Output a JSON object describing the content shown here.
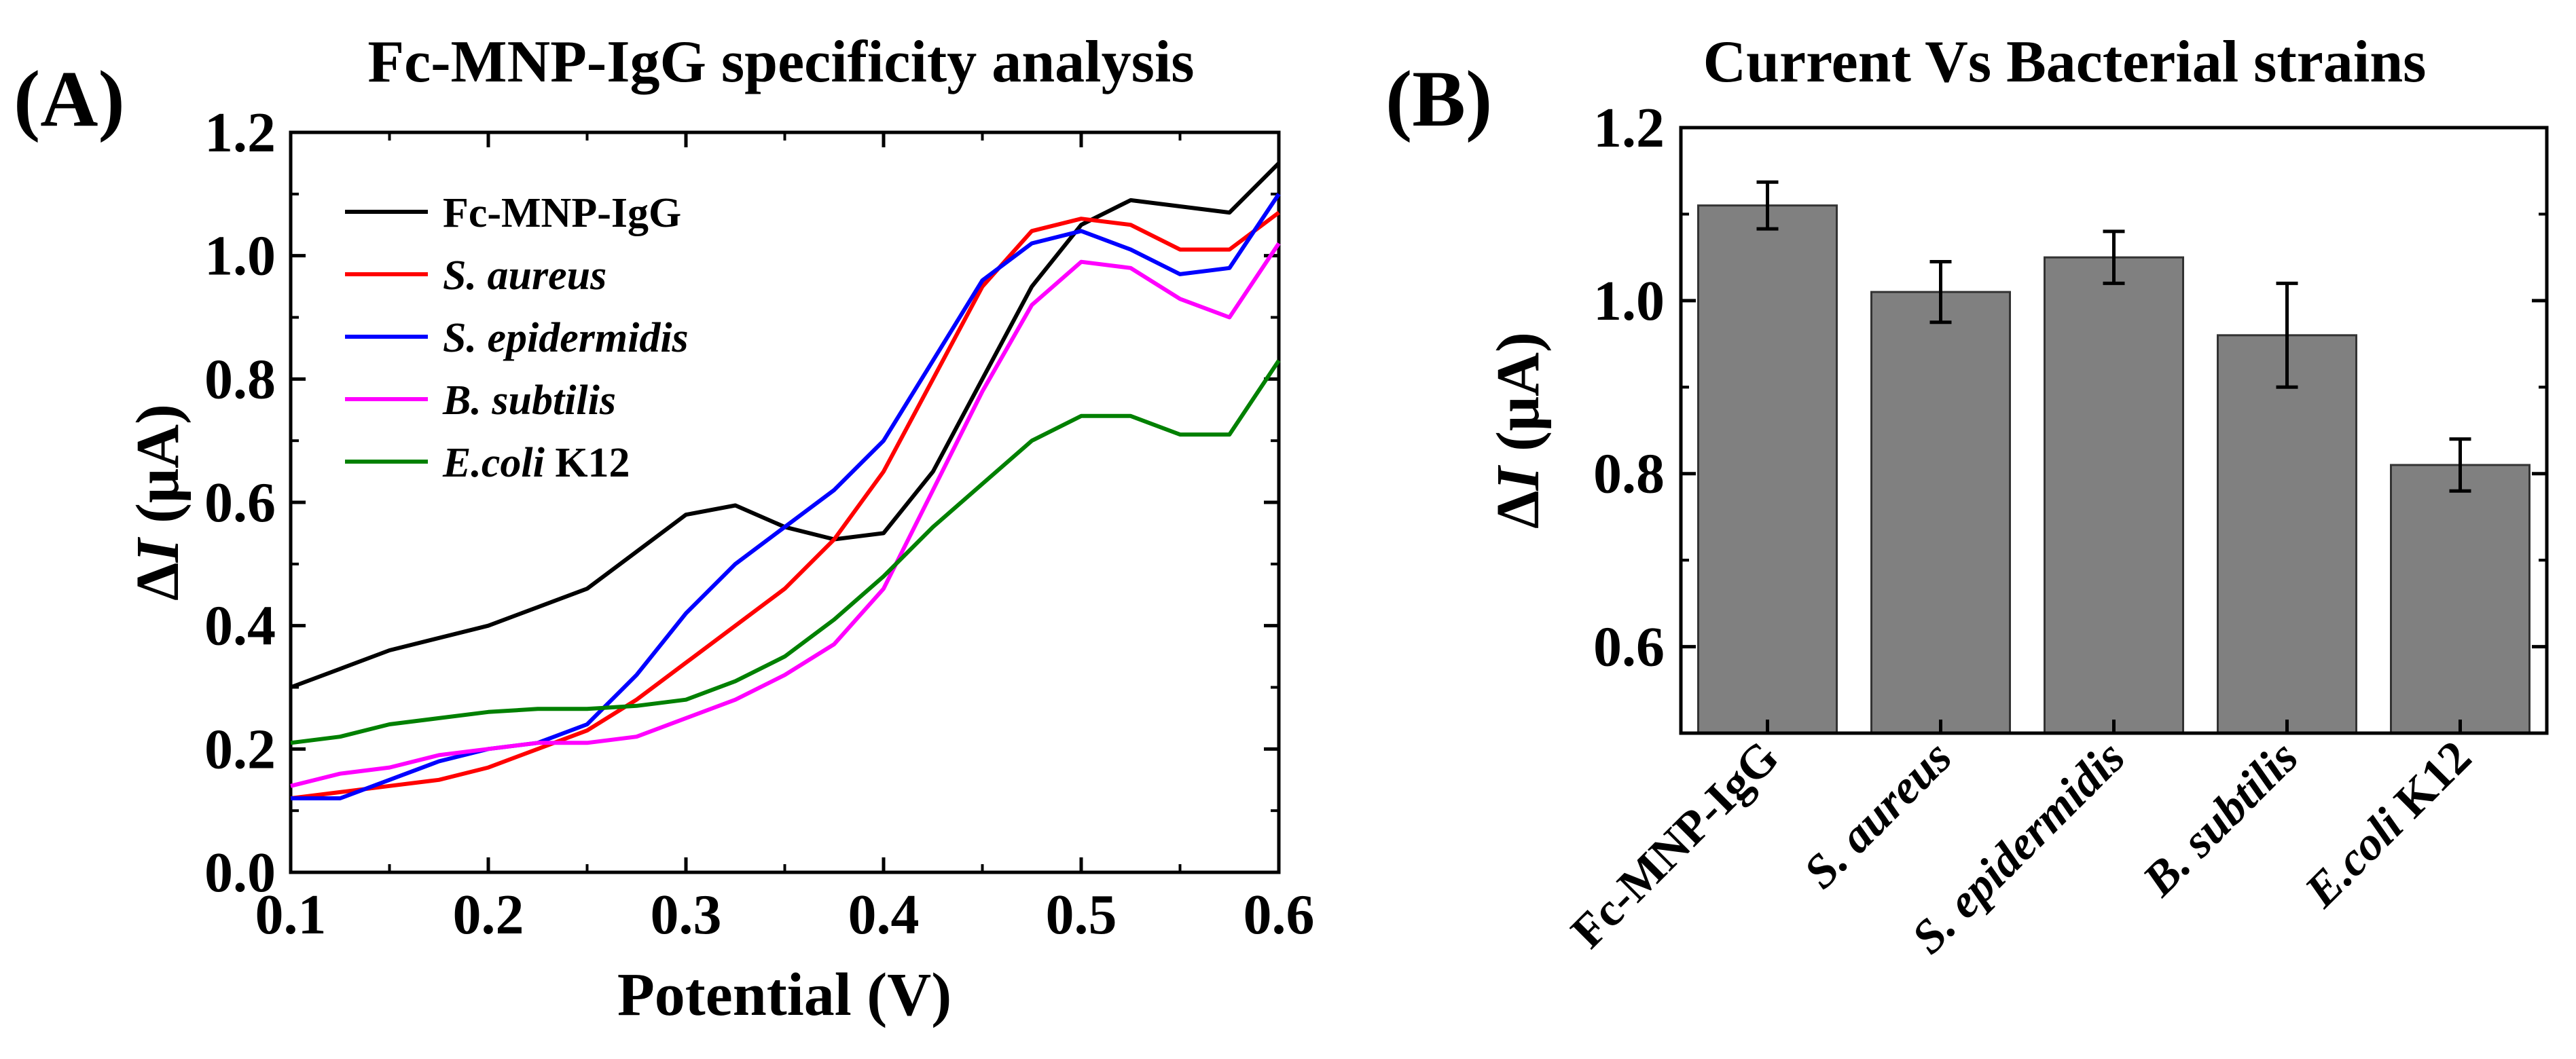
{
  "chart_data": [
    {
      "type": "line",
      "panel_label": "(A)",
      "title": "Fc-MNP-IgG specificity analysis",
      "xlabel": "Potential (V)",
      "ylabel_prefix": "Δ",
      "ylabel_var": "I",
      "ylabel_suffix": " (μA)",
      "xlim": [
        0.1,
        0.6
      ],
      "ylim": [
        0.0,
        1.2
      ],
      "xticks": [
        "0.1",
        "0.2",
        "0.3",
        "0.4",
        "0.5",
        "0.6"
      ],
      "yticks": [
        "0.0",
        "0.2",
        "0.4",
        "0.6",
        "0.8",
        "1.0",
        "1.2"
      ],
      "legend_position": "top-left",
      "grid": false,
      "x": [
        0.1,
        0.125,
        0.15,
        0.175,
        0.2,
        0.225,
        0.25,
        0.275,
        0.3,
        0.325,
        0.35,
        0.375,
        0.4,
        0.425,
        0.45,
        0.475,
        0.5,
        0.525,
        0.55,
        0.575,
        0.6
      ],
      "series": [
        {
          "name": "Fc-MNP-IgG",
          "name_italic": "",
          "name_rest": "Fc-MNP-IgG",
          "color": "#000000",
          "values": [
            0.3,
            0.33,
            0.36,
            0.38,
            0.4,
            0.43,
            0.46,
            0.52,
            0.58,
            0.595,
            0.56,
            0.54,
            0.55,
            0.65,
            0.8,
            0.95,
            1.05,
            1.09,
            1.08,
            1.07,
            1.15
          ]
        },
        {
          "name": "S. aureus",
          "name_italic": "S. aureus",
          "name_rest": "",
          "color": "#ff0000",
          "values": [
            0.12,
            0.13,
            0.14,
            0.15,
            0.17,
            0.2,
            0.23,
            0.28,
            0.34,
            0.4,
            0.46,
            0.54,
            0.65,
            0.8,
            0.95,
            1.04,
            1.06,
            1.05,
            1.01,
            1.01,
            1.07
          ]
        },
        {
          "name": "S. epidermidis",
          "name_italic": "S. epidermidis",
          "name_rest": "",
          "color": "#0000ff",
          "values": [
            0.12,
            0.12,
            0.15,
            0.18,
            0.2,
            0.21,
            0.24,
            0.32,
            0.42,
            0.5,
            0.56,
            0.62,
            0.7,
            0.83,
            0.96,
            1.02,
            1.04,
            1.01,
            0.97,
            0.98,
            1.1
          ]
        },
        {
          "name": "B. subtilis",
          "name_italic": "B. subtilis",
          "name_rest": "",
          "color": "#ff00ff",
          "values": [
            0.14,
            0.16,
            0.17,
            0.19,
            0.2,
            0.21,
            0.21,
            0.22,
            0.25,
            0.28,
            0.32,
            0.37,
            0.46,
            0.62,
            0.78,
            0.92,
            0.99,
            0.98,
            0.93,
            0.9,
            1.02
          ]
        },
        {
          "name": "E.coli K12",
          "name_italic": "E.coli",
          "name_rest": " K12",
          "color": "#008000",
          "values": [
            0.21,
            0.22,
            0.24,
            0.25,
            0.26,
            0.265,
            0.265,
            0.27,
            0.28,
            0.31,
            0.35,
            0.41,
            0.48,
            0.56,
            0.63,
            0.7,
            0.74,
            0.74,
            0.71,
            0.71,
            0.83
          ]
        }
      ]
    },
    {
      "type": "bar",
      "panel_label": "(B)",
      "title": "Current Vs Bacterial strains",
      "xlabel": "",
      "ylabel_prefix": "Δ",
      "ylabel_var": "I",
      "ylabel_suffix": " (μA)",
      "ylim": [
        0.5,
        1.2
      ],
      "yticks": [
        "0.6",
        "0.8",
        "1.0",
        "1.2"
      ],
      "grid": false,
      "bar_color": "#808080",
      "categories": [
        {
          "name": "Fc-MNP-IgG",
          "italic": "",
          "rest": "Fc-MNP-IgG"
        },
        {
          "name": "S. aureus",
          "italic": "S. aureus",
          "rest": ""
        },
        {
          "name": "S. epidermidis",
          "italic": "S. epidermidis",
          "rest": ""
        },
        {
          "name": "B. subtilis",
          "italic": "B. subtilis",
          "rest": ""
        },
        {
          "name": "E.coli K12",
          "italic": "E.coli",
          "rest": " K12"
        }
      ],
      "values": [
        1.11,
        1.01,
        1.05,
        0.96,
        0.81
      ],
      "errors": [
        0.027,
        0.035,
        0.03,
        0.06,
        0.03
      ]
    }
  ]
}
